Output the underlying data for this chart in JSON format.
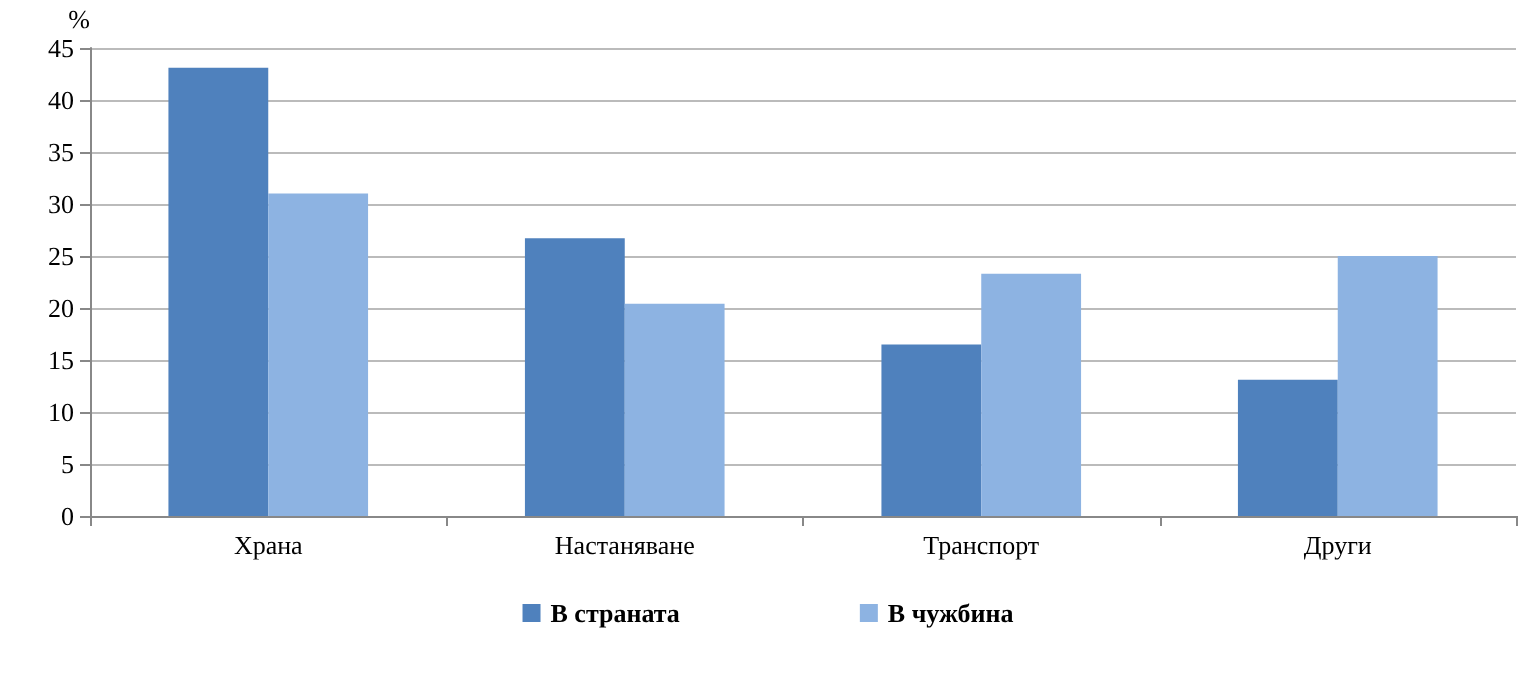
{
  "chart_data": {
    "type": "bar",
    "ylabel": "%",
    "categories": [
      "Храна",
      "Настаняване",
      "Транспорт",
      "Други"
    ],
    "series": [
      {
        "name": "В страната",
        "color": "#4f81bd",
        "values": [
          43.1,
          26.7,
          16.5,
          13.1
        ]
      },
      {
        "name": "В чужбина",
        "color": "#8db3e2",
        "values": [
          31.0,
          20.4,
          23.3,
          25.0
        ]
      }
    ],
    "ylim": [
      0,
      45
    ],
    "yticks": [
      0,
      5,
      10,
      15,
      20,
      25,
      30,
      35,
      40,
      45
    ],
    "grid": "y",
    "legend": "bottom"
  }
}
